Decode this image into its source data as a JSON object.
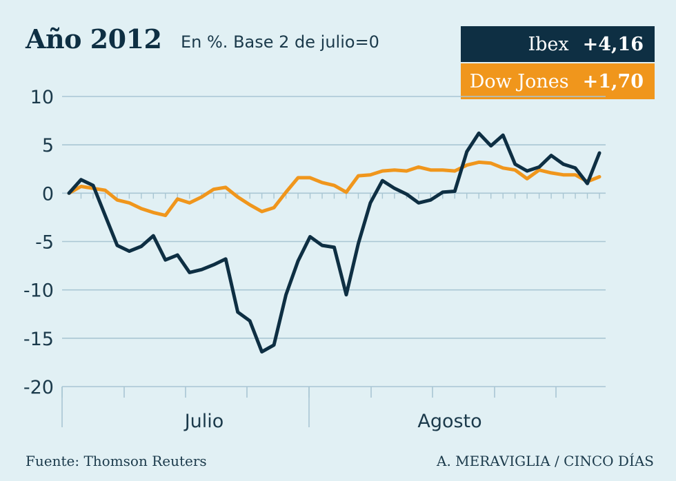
{
  "header": {
    "title": "Año 2012",
    "subtitle": "En %. Base 2 de julio=0"
  },
  "legend": [
    {
      "name": "Ibex",
      "value": "+4,16",
      "color": "#0e2f43"
    },
    {
      "name": "Dow Jones",
      "value": "+1,70",
      "color": "#f0961c"
    }
  ],
  "chart_data": {
    "type": "line",
    "ylim": [
      -20,
      10
    ],
    "yticks": [
      10,
      5,
      0,
      -5,
      -10,
      -15,
      -20
    ],
    "ytick_labels": [
      "10",
      "5",
      "0",
      "-5",
      "-10",
      "-15",
      "-20"
    ],
    "months": [
      "Julio",
      "Agosto"
    ],
    "grid": true,
    "series": [
      {
        "name": "Ibex",
        "color": "#0e2f43",
        "values": [
          0,
          1.4,
          0.8,
          -2.3,
          -5.4,
          -6.0,
          -5.5,
          -4.4,
          -6.9,
          -6.4,
          -8.2,
          -7.9,
          -7.4,
          -6.8,
          -12.3,
          -13.2,
          -16.4,
          -15.7,
          -10.5,
          -7.0,
          -4.5,
          -5.4,
          -5.6,
          -10.5,
          -5.2,
          -1.0,
          1.3,
          0.5,
          -0.1,
          -1.0,
          -0.7,
          0.1,
          0.2,
          4.3,
          6.2,
          4.9,
          6.0,
          3.0,
          2.3,
          2.7,
          3.9,
          3.0,
          2.6,
          1.0,
          4.16
        ]
      },
      {
        "name": "Dow Jones",
        "color": "#f0961c",
        "values": [
          0,
          0.7,
          0.5,
          0.3,
          -0.7,
          -1.0,
          -1.6,
          -2.0,
          -2.3,
          -0.6,
          -1.0,
          -0.4,
          0.4,
          0.6,
          -0.4,
          -1.2,
          -1.9,
          -1.5,
          0.1,
          1.6,
          1.6,
          1.1,
          0.8,
          0.1,
          1.8,
          1.9,
          2.3,
          2.4,
          2.3,
          2.7,
          2.4,
          2.4,
          2.3,
          2.9,
          3.2,
          3.1,
          2.6,
          2.4,
          1.5,
          2.4,
          2.1,
          1.9,
          1.9,
          1.2,
          1.7
        ]
      }
    ]
  },
  "footer": {
    "source": "Fuente: Thomson Reuters",
    "credit": "A. MERAVIGLIA / CINCO DÍAS"
  }
}
